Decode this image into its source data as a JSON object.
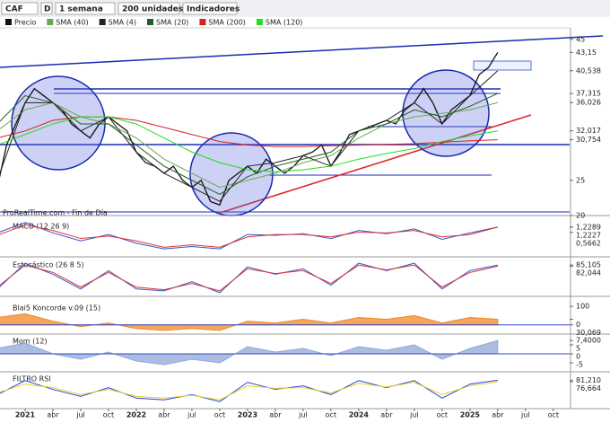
{
  "toolbar": {
    "symbol": "CAF",
    "mode": "D",
    "period": "1 semana",
    "units": "200 unidades",
    "indicators": "Indicadores"
  },
  "chart_data": [
    {
      "type": "line",
      "annotation": "ProRealTime.com - Fin de Día",
      "ylim": [
        20,
        46.5
      ],
      "yticks": [
        45,
        {
          "value": 43.15,
          "label": "43,15"
        },
        {
          "value": 40.538,
          "label": "40,538"
        },
        {
          "value": 37.315,
          "label": "37,315"
        },
        {
          "value": 36.026,
          "label": "36,026"
        },
        {
          "value": 32.017,
          "label": "32,017"
        },
        {
          "value": 30.754,
          "label": "30,754"
        },
        25,
        20
      ],
      "series": [
        {
          "name": "Precio",
          "color": "#111111",
          "x": [
            "2020-10",
            "2020-11",
            "2020-12",
            "2021-01",
            "2021-02",
            "2021-03",
            "2021-04",
            "2021-05",
            "2021-06",
            "2021-07",
            "2021-08",
            "2021-09",
            "2021-10",
            "2021-11",
            "2021-12",
            "2022-01",
            "2022-02",
            "2022-03",
            "2022-04",
            "2022-05",
            "2022-06",
            "2022-07",
            "2022-08",
            "2022-09",
            "2022-10",
            "2022-11",
            "2022-12",
            "2023-01",
            "2023-02",
            "2023-03",
            "2023-04",
            "2023-05",
            "2023-06",
            "2023-07",
            "2023-08",
            "2023-09",
            "2023-10",
            "2023-11",
            "2023-12",
            "2024-01",
            "2024-02",
            "2024-03",
            "2024-04",
            "2024-05",
            "2024-06",
            "2024-07",
            "2024-08",
            "2024-09",
            "2024-10",
            "2024-11",
            "2024-12",
            "2025-01",
            "2025-02",
            "2025-03",
            "2025-04"
          ],
          "values": [
            24,
            30,
            33,
            36,
            38,
            37,
            36,
            35,
            33,
            32,
            31,
            33,
            34,
            33,
            32,
            29,
            27.5,
            27,
            26,
            27,
            25,
            24,
            25,
            22,
            21.5,
            25,
            26,
            27,
            26,
            28,
            27,
            26,
            27,
            28.5,
            29,
            30,
            27,
            29,
            31.5,
            32,
            32.5,
            33,
            33.5,
            33,
            35,
            36,
            38,
            36,
            33,
            35,
            36,
            37,
            40,
            41,
            43.15
          ]
        },
        {
          "name": "SMA (40)",
          "color": "#6aa84f",
          "x": [
            "2020-10",
            "2021-01",
            "2021-04",
            "2021-07",
            "2021-10",
            "2022-01",
            "2022-04",
            "2022-07",
            "2022-10",
            "2023-01",
            "2023-04",
            "2023-07",
            "2023-10",
            "2024-01",
            "2024-04",
            "2024-07",
            "2024-10",
            "2025-01",
            "2025-04"
          ],
          "values": [
            32,
            35,
            36,
            34,
            33,
            31,
            28,
            26,
            24,
            25,
            26,
            27.5,
            28.5,
            31,
            33,
            34,
            34.5,
            35,
            36.026
          ]
        },
        {
          "name": "SMA (4)",
          "color": "#222222",
          "x": [
            "2020-10",
            "2021-01",
            "2021-04",
            "2021-07",
            "2021-10",
            "2022-01",
            "2022-04",
            "2022-07",
            "2022-10",
            "2023-01",
            "2023-04",
            "2023-07",
            "2023-10",
            "2024-01",
            "2024-04",
            "2024-07",
            "2024-10",
            "2025-01",
            "2025-04"
          ],
          "values": [
            25,
            36,
            36,
            32,
            34,
            29,
            26,
            24,
            22,
            27,
            27.5,
            28.5,
            27,
            32,
            33.5,
            36,
            33,
            37,
            40.538
          ]
        },
        {
          "name": "SMA (20)",
          "color": "#1e5e20",
          "x": [
            "2020-10",
            "2021-01",
            "2021-04",
            "2021-07",
            "2021-10",
            "2022-01",
            "2022-04",
            "2022-07",
            "2022-10",
            "2023-01",
            "2023-04",
            "2023-07",
            "2023-10",
            "2024-01",
            "2024-04",
            "2024-07",
            "2024-10",
            "2025-01",
            "2025-04"
          ],
          "values": [
            33,
            37,
            36,
            33,
            33,
            30,
            27,
            25,
            23,
            25.5,
            27,
            28,
            29,
            32,
            33,
            35,
            34,
            35.5,
            37.315
          ]
        },
        {
          "name": "SMA (200)",
          "color": "#d62020",
          "x": [
            "2020-10",
            "2021-01",
            "2021-04",
            "2021-07",
            "2021-10",
            "2022-01",
            "2022-04",
            "2022-07",
            "2022-10",
            "2023-01",
            "2023-04",
            "2023-07",
            "2023-10",
            "2024-01",
            "2024-04",
            "2024-07",
            "2024-10",
            "2025-01",
            "2025-04"
          ],
          "values": [
            31,
            32,
            33.5,
            34,
            34,
            33.5,
            32.5,
            31.5,
            30.5,
            30,
            29.8,
            29.8,
            29.9,
            30,
            30.1,
            30.2,
            30.4,
            30.6,
            30.754
          ]
        },
        {
          "name": "SMA (120)",
          "color": "#22dd22",
          "x": [
            "2020-10",
            "2021-01",
            "2021-04",
            "2021-07",
            "2021-10",
            "2022-01",
            "2022-04",
            "2022-07",
            "2022-10",
            "2023-01",
            "2023-04",
            "2023-07",
            "2023-10",
            "2024-01",
            "2024-04",
            "2024-07",
            "2024-10",
            "2025-01",
            "2025-04"
          ],
          "values": [
            30,
            31.5,
            33,
            34,
            34,
            33,
            31,
            29,
            27.5,
            26.5,
            26.2,
            26.5,
            27,
            28,
            28.8,
            29.5,
            30.5,
            31.3,
            32.017
          ]
        }
      ]
    },
    {
      "type": "line",
      "title": "MACD (12 26 9)",
      "ylim": [
        -2.5,
        2
      ],
      "yticks": [
        {
          "value": 1.2289,
          "label": "1,2289"
        },
        {
          "value": 1.2227,
          "label": "1,2227"
        },
        {
          "value": 0.5662,
          "label": "0,5662"
        }
      ],
      "series": [
        {
          "color": "#3355cc",
          "x": [
            "2020-10",
            "2021-01",
            "2021-04",
            "2021-07",
            "2021-10",
            "2022-01",
            "2022-04",
            "2022-07",
            "2022-10",
            "2023-01",
            "2023-04",
            "2023-07",
            "2023-10",
            "2024-01",
            "2024-04",
            "2024-07",
            "2024-10",
            "2025-01",
            "2025-04"
          ],
          "values": [
            0.5,
            1.8,
            0.5,
            -0.5,
            0.3,
            -0.8,
            -1.5,
            -1.2,
            -1.5,
            0.3,
            0.2,
            0.4,
            -0.2,
            0.8,
            0.4,
            1.0,
            -0.3,
            0.5,
            1.2289
          ]
        },
        {
          "color": "#dd3333",
          "x": [
            "2020-10",
            "2021-01",
            "2021-04",
            "2021-07",
            "2021-10",
            "2022-01",
            "2022-04",
            "2022-07",
            "2022-10",
            "2023-01",
            "2023-04",
            "2023-07",
            "2023-10",
            "2024-01",
            "2024-04",
            "2024-07",
            "2024-10",
            "2025-01",
            "2025-04"
          ],
          "values": [
            0.2,
            1.5,
            0.8,
            -0.2,
            0.1,
            -0.5,
            -1.3,
            -1.0,
            -1.3,
            0.0,
            0.3,
            0.3,
            0.0,
            0.6,
            0.5,
            0.8,
            0.0,
            0.3,
            1.2227
          ]
        }
      ]
    },
    {
      "type": "line",
      "title": "Estocástico (26 8 5)",
      "ylim": [
        0,
        100
      ],
      "yticks": [
        {
          "value": 85.105,
          "label": "85,105"
        },
        {
          "value": 82.044,
          "label": "82,044"
        }
      ],
      "series": [
        {
          "color": "#3355cc",
          "x": [
            "2020-10",
            "2021-01",
            "2021-04",
            "2021-07",
            "2021-10",
            "2022-01",
            "2022-04",
            "2022-07",
            "2022-10",
            "2023-01",
            "2023-04",
            "2023-07",
            "2023-10",
            "2024-01",
            "2024-04",
            "2024-07",
            "2024-10",
            "2025-01",
            "2025-04"
          ],
          "values": [
            20,
            90,
            60,
            20,
            70,
            20,
            15,
            40,
            10,
            80,
            60,
            75,
            30,
            90,
            70,
            90,
            20,
            70,
            85.105
          ]
        },
        {
          "color": "#dd3333",
          "x": [
            "2020-10",
            "2021-01",
            "2021-04",
            "2021-07",
            "2021-10",
            "2022-01",
            "2022-04",
            "2022-07",
            "2022-10",
            "2023-01",
            "2023-04",
            "2023-07",
            "2023-10",
            "2024-01",
            "2024-04",
            "2024-07",
            "2024-10",
            "2025-01",
            "2025-04"
          ],
          "values": [
            25,
            85,
            65,
            25,
            65,
            25,
            18,
            35,
            15,
            75,
            62,
            70,
            35,
            85,
            72,
            85,
            25,
            65,
            82.044
          ]
        }
      ]
    },
    {
      "type": "area",
      "title": "Blai5 Koncorde v.09 (15)",
      "ylim": [
        -50,
        120
      ],
      "yticks": [
        100,
        0,
        {
          "value": 30.069,
          "label": "30,069"
        }
      ],
      "series": [
        {
          "color": "#f08a24",
          "x": [
            "2020-10",
            "2021-01",
            "2021-04",
            "2021-07",
            "2021-10",
            "2022-01",
            "2022-04",
            "2022-07",
            "2022-10",
            "2023-01",
            "2023-04",
            "2023-07",
            "2023-10",
            "2024-01",
            "2024-04",
            "2024-07",
            "2024-10",
            "2025-01",
            "2025-04"
          ],
          "values": [
            40,
            60,
            20,
            -10,
            10,
            -20,
            -30,
            -20,
            -30,
            20,
            10,
            30,
            10,
            40,
            30,
            50,
            10,
            40,
            30.069
          ]
        }
      ]
    },
    {
      "type": "area",
      "title": "Mom (12)",
      "ylim": [
        -10,
        10
      ],
      "yticks": [
        {
          "value": 7.4,
          "label": "7,4000"
        },
        5,
        0,
        -5
      ],
      "series": [
        {
          "color": "#8fa8d8",
          "x": [
            "2020-10",
            "2021-01",
            "2021-04",
            "2021-07",
            "2021-10",
            "2022-01",
            "2022-04",
            "2022-07",
            "2022-10",
            "2023-01",
            "2023-04",
            "2023-07",
            "2023-10",
            "2024-01",
            "2024-04",
            "2024-07",
            "2024-10",
            "2025-01",
            "2025-04"
          ],
          "values": [
            3,
            6,
            0,
            -3,
            1,
            -4,
            -6,
            -3,
            -5,
            4,
            1,
            3,
            -1,
            4,
            2,
            5,
            -3,
            3,
            7.4
          ]
        }
      ]
    },
    {
      "type": "line",
      "title": "FILTRO RSI",
      "ylim": [
        0,
        100
      ],
      "yticks": [
        {
          "value": 81.21,
          "label": "81,210"
        },
        {
          "value": 76.664,
          "label": "76,664"
        }
      ],
      "xticks": [
        {
          "value": "2021-01",
          "label": "2021"
        },
        {
          "value": "2021-04",
          "label": "abr"
        },
        {
          "value": "2021-07",
          "label": "jul"
        },
        {
          "value": "2021-10",
          "label": "oct"
        },
        {
          "value": "2022-01",
          "label": "2022"
        },
        {
          "value": "2022-04",
          "label": "abr"
        },
        {
          "value": "2022-07",
          "label": "jul"
        },
        {
          "value": "2022-10",
          "label": "oct"
        },
        {
          "value": "2023-01",
          "label": "2023"
        },
        {
          "value": "2023-04",
          "label": "abr"
        },
        {
          "value": "2023-07",
          "label": "jul"
        },
        {
          "value": "2023-10",
          "label": "oct"
        },
        {
          "value": "2024-01",
          "label": "2024"
        },
        {
          "value": "2024-04",
          "label": "abr"
        },
        {
          "value": "2024-07",
          "label": "jul"
        },
        {
          "value": "2024-10",
          "label": "oct"
        },
        {
          "value": "2025-01",
          "label": "2025"
        },
        {
          "value": "2025-04",
          "label": "abr"
        },
        {
          "value": "2025-07",
          "label": "jul"
        },
        {
          "value": "2025-10",
          "label": "oct"
        }
      ],
      "series": [
        {
          "color": "#2244dd",
          "x": [
            "2020-10",
            "2021-01",
            "2021-04",
            "2021-07",
            "2021-10",
            "2022-01",
            "2022-04",
            "2022-07",
            "2022-10",
            "2023-01",
            "2023-04",
            "2023-07",
            "2023-10",
            "2024-01",
            "2024-04",
            "2024-07",
            "2024-10",
            "2025-01",
            "2025-04"
          ],
          "values": [
            40,
            80,
            55,
            35,
            60,
            30,
            25,
            40,
            20,
            75,
            55,
            65,
            40,
            80,
            60,
            80,
            30,
            70,
            81.21
          ]
        },
        {
          "color": "#e8d020",
          "x": [
            "2020-10",
            "2021-01",
            "2021-04",
            "2021-07",
            "2021-10",
            "2022-01",
            "2022-04",
            "2022-07",
            "2022-10",
            "2023-01",
            "2023-04",
            "2023-07",
            "2023-10",
            "2024-01",
            "2024-04",
            "2024-07",
            "2024-10",
            "2025-01",
            "2025-04"
          ],
          "values": [
            45,
            70,
            60,
            40,
            55,
            35,
            30,
            38,
            25,
            65,
            58,
            60,
            45,
            72,
            62,
            75,
            40,
            65,
            76.664
          ]
        }
      ]
    }
  ]
}
